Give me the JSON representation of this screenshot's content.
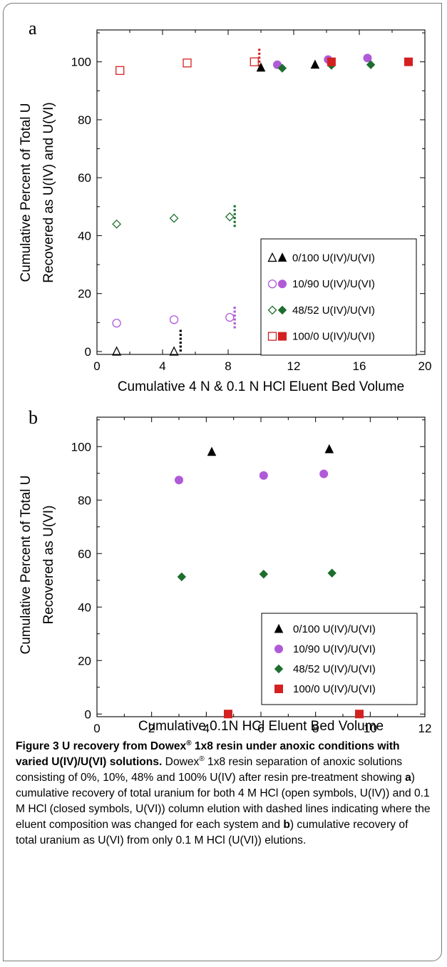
{
  "chart_data": [
    {
      "type": "scatter",
      "panel_label": "a",
      "xlabel": "Cumulative 4 N & 0.1 N HCl Eluent Bed Volume",
      "ylabel_line1": "Cumulative Percent of Total U",
      "ylabel_line2": "Recovered as U(IV) and U(VI)",
      "xlim": [
        0,
        20
      ],
      "ylim": [
        -1,
        111
      ],
      "xticks": [
        0,
        4,
        8,
        12,
        16,
        20
      ],
      "yticks": [
        0,
        20,
        40,
        60,
        80,
        100
      ],
      "legend_position": "lower-right",
      "series": [
        {
          "name": "0/100 U(IV)/U(VI)",
          "marker": "triangle",
          "color": "#000000",
          "open_points": [
            [
              1.2,
              0
            ],
            [
              4.7,
              0
            ]
          ],
          "closed_points": [
            [
              10.0,
              98.0
            ],
            [
              13.3,
              99.0
            ]
          ],
          "change_at": {
            "x": 5.1,
            "y_from": 0,
            "y_to": 8
          }
        },
        {
          "name": "10/90 U(IV)/U(VI)",
          "marker": "circle",
          "color": "#b05ad8",
          "open_points": [
            [
              1.2,
              9.8
            ],
            [
              4.7,
              11.0
            ],
            [
              8.1,
              11.8
            ]
          ],
          "closed_points": [
            [
              11.0,
              99.0
            ],
            [
              14.1,
              100.8
            ],
            [
              16.5,
              101.3
            ]
          ],
          "change_at": {
            "x": 8.4,
            "y_from": 8,
            "y_to": 16
          }
        },
        {
          "name": "48/52 U(IV)/U(VI)",
          "marker": "diamond",
          "color": "#1e6e2e",
          "open_points": [
            [
              1.2,
              44.0
            ],
            [
              4.7,
              46.0
            ],
            [
              8.1,
              46.5
            ]
          ],
          "closed_points": [
            [
              11.3,
              97.8
            ],
            [
              14.3,
              98.8
            ],
            [
              16.7,
              99.0
            ]
          ],
          "change_at": {
            "x": 8.4,
            "y_from": 43,
            "y_to": 51
          }
        },
        {
          "name": "100/0 U(IV)/U(VI)",
          "marker": "square",
          "color": "#d42020",
          "open_points": [
            [
              1.4,
              97.0
            ],
            [
              5.5,
              99.6
            ],
            [
              9.6,
              100.0
            ]
          ],
          "closed_points": [
            [
              14.3,
              100.0
            ],
            [
              19.0,
              100.0
            ]
          ],
          "change_at": {
            "x": 9.9,
            "y_from": 97,
            "y_to": 105
          }
        }
      ]
    },
    {
      "type": "scatter",
      "panel_label": "b",
      "xlabel": "Cumulative 0.1N HCl Eluent Bed Volume",
      "ylabel_line1": "Cumulative Percent of Total U",
      "ylabel_line2": "Recovered as U(VI)",
      "xlim": [
        0,
        12
      ],
      "ylim": [
        -1,
        111
      ],
      "xticks": [
        0,
        2,
        4,
        6,
        8,
        10,
        12
      ],
      "yticks": [
        0,
        20,
        40,
        60,
        80,
        100
      ],
      "legend_position": "lower-right",
      "series": [
        {
          "name": "0/100 U(IV)/U(VI)",
          "marker": "triangle",
          "color": "#000000",
          "closed_points": [
            [
              4.2,
              98.0
            ],
            [
              8.5,
              99.0
            ]
          ]
        },
        {
          "name": "10/90 U(IV)/U(VI)",
          "marker": "circle",
          "color": "#b05ad8",
          "closed_points": [
            [
              3.0,
              87.5
            ],
            [
              6.1,
              89.2
            ],
            [
              8.3,
              89.8
            ]
          ]
        },
        {
          "name": "48/52 U(IV)/U(VI)",
          "marker": "diamond",
          "color": "#1e6e2e",
          "closed_points": [
            [
              3.1,
              51.3
            ],
            [
              6.1,
              52.3
            ],
            [
              8.6,
              52.7
            ]
          ]
        },
        {
          "name": "100/0 U(IV)/U(VI)",
          "marker": "square",
          "color": "#d42020",
          "closed_points": [
            [
              4.8,
              0
            ],
            [
              9.6,
              0
            ]
          ]
        }
      ]
    }
  ],
  "caption": {
    "bold_part1": "Figure 3 U recovery from Dowex",
    "reg": "®",
    "bold_part2": " 1x8 resin under anoxic conditions with varied U(IV)/U(VI) solutions.",
    "t1": " Dowex",
    "t2": " 1x8 resin separation of anoxic solutions consisting of 0%, 10%, 48% and 100% U(IV) after resin pre-treatment showing ",
    "a": "a",
    "t3": ") cumulative recovery of total uranium for both 4 M HCl (open symbols, U(IV)) and 0.1 M HCl (closed symbols, U(VI)) column elution with dashed lines indicating where the eluent composition was changed for each system and ",
    "b": "b",
    "t4": ") cumulative recovery of total uranium as U(VI) from only 0.1 M HCl (U(VI)) elutions."
  }
}
